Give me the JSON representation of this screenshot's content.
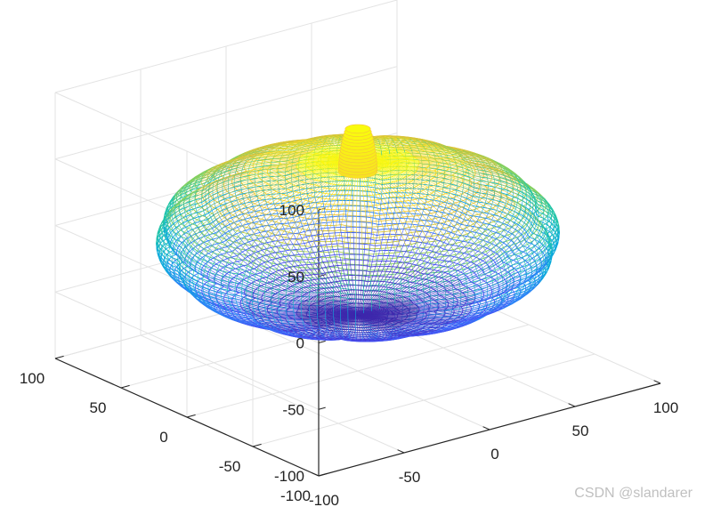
{
  "watermark": "CSDN @slandarer",
  "chart_data": {
    "type": "surface3d",
    "title": "",
    "xlabel": "",
    "ylabel": "",
    "zlabel": "",
    "grid": true,
    "box": "open-3d-axes",
    "colormap": "parula",
    "xlim": [
      -100,
      100
    ],
    "ylim": [
      -100,
      100
    ],
    "zlim": [
      -100,
      100
    ],
    "xticks": [
      -100,
      -50,
      0,
      50,
      100
    ],
    "yticks": [
      -100,
      -50,
      0,
      50,
      100
    ],
    "zticks": [
      -100,
      -50,
      0,
      50,
      100
    ],
    "xtick_labels": [
      "-100",
      "-50",
      "0",
      "50",
      "100"
    ],
    "ytick_labels": [
      "-100",
      "-50",
      "0",
      "50",
      "100"
    ],
    "ztick_labels": [
      "-100",
      "-50",
      "0",
      "50",
      "100"
    ],
    "surface": {
      "shape": "pumpkin",
      "ribs": 12,
      "radius_xy": 92,
      "z_half_height": 58,
      "stem_radius": 9,
      "stem_top": 82
    }
  }
}
